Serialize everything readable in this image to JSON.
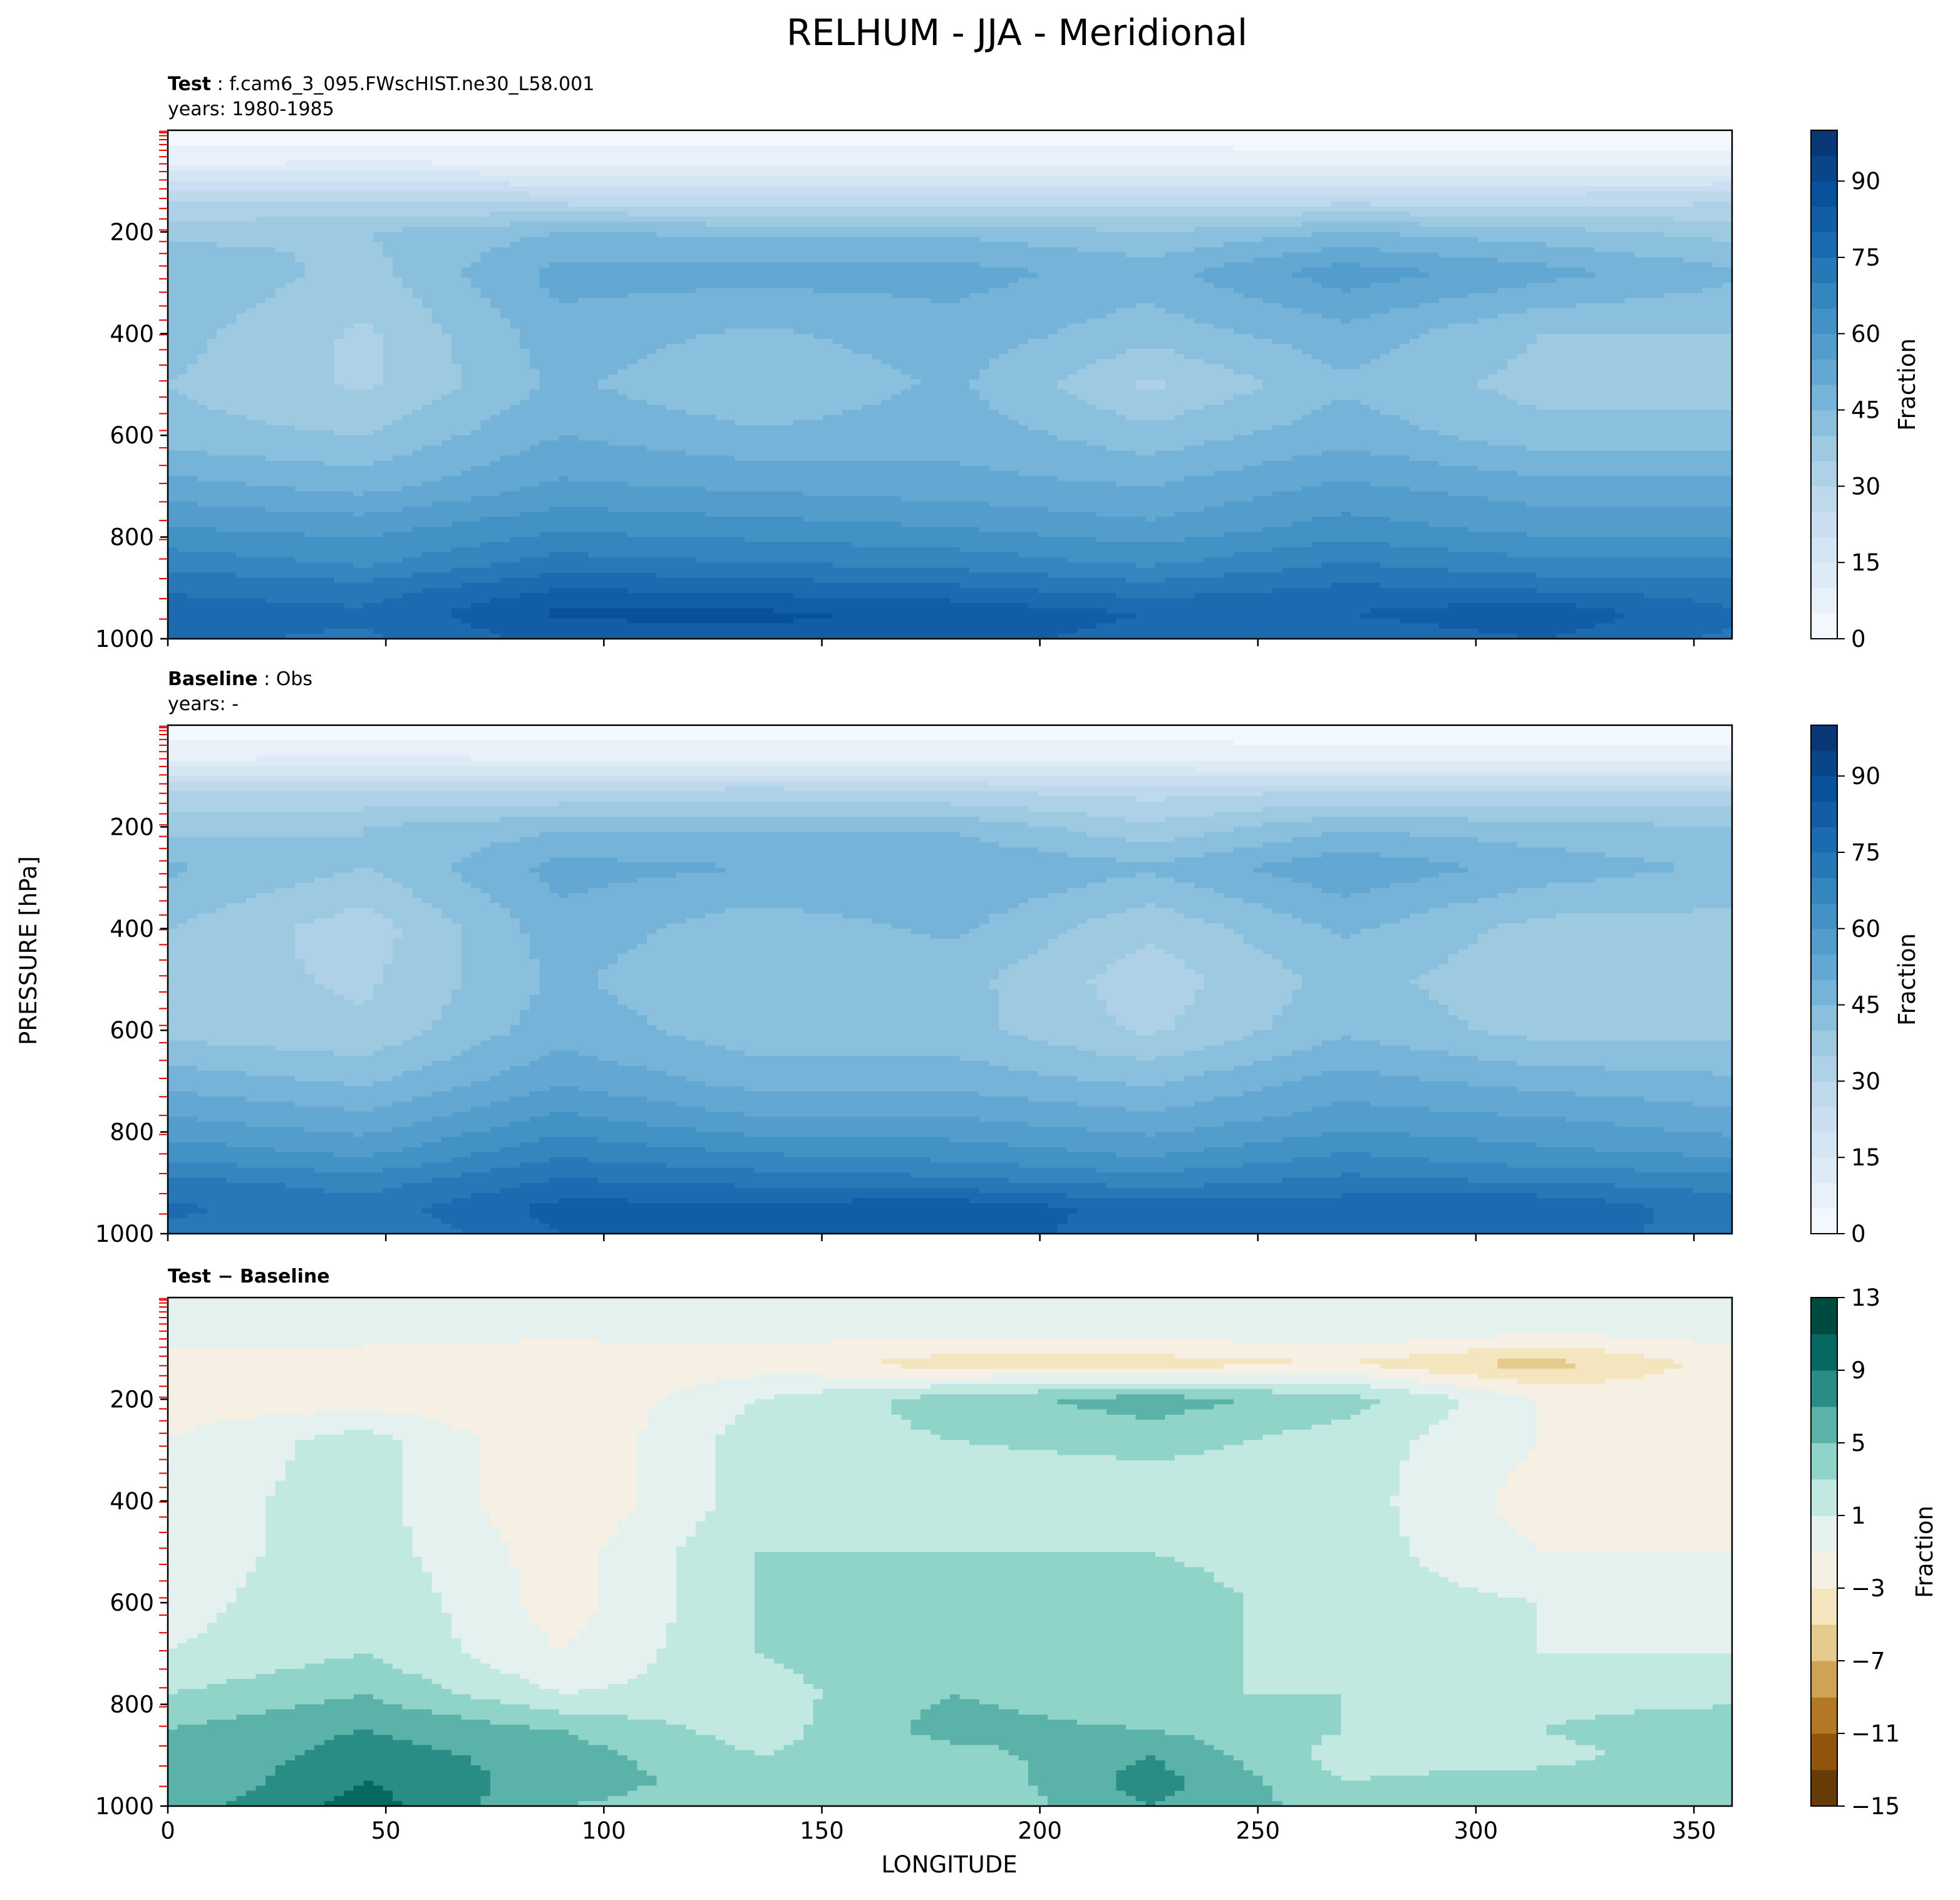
{
  "figure": {
    "title": "RELHUM - JJA - Meridional",
    "ylabel": "PRESSURE [hPa]",
    "xlabel": "LONGITUDE"
  },
  "chart_data": [
    {
      "type": "heatmap",
      "panel": "test",
      "title_bold": "Test",
      "title_rest": " : f.cam6_3_095.FWscHIST.ne30_L58.001",
      "subtitle": "years: 1980-1985",
      "x_ticks": [
        0,
        50,
        100,
        150,
        200,
        250,
        300,
        350
      ],
      "x_tick_labels_shown": false,
      "y_ticks": [
        200,
        400,
        600,
        800,
        1000
      ],
      "xlim": [
        0,
        358.75
      ],
      "ylim": [
        1000,
        0
      ],
      "x_nodes": [
        0,
        45,
        90,
        135,
        180,
        225,
        270,
        315,
        358.75
      ],
      "p_nodes": [
        0,
        60,
        130,
        200,
        280,
        400,
        500,
        600,
        700,
        780,
        850,
        900,
        950,
        1000
      ],
      "z": [
        [
          2,
          2,
          2,
          2,
          2,
          2,
          2,
          2,
          2
        ],
        [
          8,
          9,
          8,
          8,
          8,
          8,
          6,
          6,
          6
        ],
        [
          28,
          28,
          26,
          24,
          24,
          26,
          26,
          26,
          28
        ],
        [
          38,
          40,
          45,
          44,
          44,
          40,
          45,
          42,
          38
        ],
        [
          45,
          38,
          52,
          52,
          52,
          48,
          58,
          52,
          46
        ],
        [
          42,
          34,
          48,
          44,
          48,
          42,
          48,
          40,
          40
        ],
        [
          40,
          34,
          46,
          40,
          46,
          34,
          44,
          38,
          38
        ],
        [
          42,
          40,
          50,
          46,
          48,
          42,
          48,
          42,
          42
        ],
        [
          52,
          48,
          56,
          54,
          52,
          50,
          56,
          52,
          52
        ],
        [
          60,
          58,
          64,
          62,
          60,
          56,
          62,
          58,
          58
        ],
        [
          68,
          64,
          72,
          70,
          68,
          64,
          70,
          66,
          66
        ],
        [
          74,
          72,
          80,
          78,
          76,
          72,
          76,
          74,
          72
        ],
        [
          78,
          76,
          86,
          86,
          84,
          80,
          80,
          84,
          76
        ],
        [
          76,
          74,
          82,
          84,
          82,
          78,
          76,
          80,
          74
        ]
      ],
      "colorbar": {
        "label": "Fraction",
        "ticks": [
          0,
          15,
          30,
          45,
          60,
          75,
          90
        ],
        "range": [
          0,
          100
        ],
        "levels": 20,
        "colormap": "Blues",
        "colors": [
          "#f7fbff",
          "#deebf7",
          "#c6dbef",
          "#9ecae1",
          "#6baed6",
          "#4292c6",
          "#2171b5",
          "#08519c",
          "#08306b"
        ]
      }
    },
    {
      "type": "heatmap",
      "panel": "baseline",
      "title_bold": "Baseline",
      "title_rest": " : Obs",
      "subtitle": "years: -",
      "x_ticks": [
        0,
        50,
        100,
        150,
        200,
        250,
        300,
        350
      ],
      "x_tick_labels_shown": false,
      "y_ticks": [
        200,
        400,
        600,
        800,
        1000
      ],
      "xlim": [
        0,
        358.75
      ],
      "ylim": [
        1000,
        0
      ],
      "x_nodes": [
        0,
        45,
        90,
        135,
        180,
        225,
        270,
        315,
        358.75
      ],
      "p_nodes": [
        0,
        60,
        130,
        200,
        280,
        400,
        500,
        600,
        700,
        780,
        850,
        900,
        950,
        1000
      ],
      "z": [
        [
          2,
          2,
          2,
          2,
          2,
          2,
          2,
          2,
          2
        ],
        [
          8,
          9,
          8,
          8,
          8,
          8,
          6,
          6,
          6
        ],
        [
          30,
          30,
          30,
          32,
          30,
          28,
          30,
          30,
          30
        ],
        [
          38,
          40,
          44,
          44,
          44,
          36,
          44,
          42,
          40
        ],
        [
          46,
          40,
          52,
          50,
          50,
          46,
          54,
          48,
          44
        ],
        [
          40,
          32,
          48,
          42,
          46,
          36,
          46,
          38,
          38
        ],
        [
          38,
          34,
          46,
          40,
          42,
          32,
          42,
          36,
          36
        ],
        [
          38,
          36,
          48,
          42,
          42,
          34,
          44,
          38,
          38
        ],
        [
          48,
          44,
          54,
          48,
          48,
          44,
          52,
          48,
          46
        ],
        [
          56,
          52,
          62,
          56,
          56,
          52,
          58,
          56,
          52
        ],
        [
          64,
          60,
          70,
          66,
          64,
          60,
          66,
          62,
          60
        ],
        [
          72,
          68,
          76,
          74,
          72,
          68,
          72,
          70,
          68
        ],
        [
          76,
          72,
          82,
          82,
          84,
          78,
          78,
          80,
          72
        ],
        [
          74,
          70,
          80,
          82,
          84,
          76,
          76,
          78,
          72
        ]
      ],
      "colorbar": {
        "label": "Fraction",
        "ticks": [
          0,
          15,
          30,
          45,
          60,
          75,
          90
        ],
        "range": [
          0,
          100
        ],
        "levels": 20,
        "colormap": "Blues",
        "colors": [
          "#f7fbff",
          "#deebf7",
          "#c6dbef",
          "#9ecae1",
          "#6baed6",
          "#4292c6",
          "#2171b5",
          "#08519c",
          "#08306b"
        ]
      }
    },
    {
      "type": "heatmap",
      "panel": "difference",
      "title_bold": "Test − Baseline",
      "title_rest": "",
      "subtitle": "",
      "x_ticks": [
        0,
        50,
        100,
        150,
        200,
        250,
        300,
        350
      ],
      "x_tick_labels_shown": true,
      "y_ticks": [
        200,
        400,
        600,
        800,
        1000
      ],
      "xlim": [
        0,
        358.75
      ],
      "ylim": [
        1000,
        0
      ],
      "x_nodes": [
        0,
        45,
        90,
        135,
        180,
        225,
        270,
        315,
        358.75
      ],
      "p_nodes": [
        0,
        60,
        130,
        200,
        280,
        400,
        500,
        600,
        700,
        780,
        850,
        900,
        950,
        1000
      ],
      "z": [
        [
          0,
          0,
          0,
          0,
          0,
          0,
          0,
          1,
          1
        ],
        [
          0,
          0,
          0,
          0,
          0,
          0,
          1,
          0,
          0
        ],
        [
          -2,
          -2,
          -3,
          -2,
          -4,
          -4,
          -3,
          -6,
          -2
        ],
        [
          -2,
          -2,
          -3,
          1,
          4,
          6,
          4,
          -1,
          -2
        ],
        [
          -1,
          2,
          -3,
          2,
          3,
          4,
          2,
          -1,
          -1
        ],
        [
          0,
          2,
          -3,
          2,
          1,
          1,
          2,
          -2,
          -2
        ],
        [
          0,
          2,
          -2,
          3,
          3,
          3,
          2,
          -1,
          -1
        ],
        [
          0,
          3,
          -2,
          3,
          5,
          4,
          2,
          1,
          0
        ],
        [
          1,
          3,
          -1,
          3,
          5,
          4,
          2,
          1,
          1
        ],
        [
          3,
          5,
          1,
          2,
          5,
          3,
          3,
          2,
          2
        ],
        [
          5,
          7,
          5,
          2,
          6,
          5,
          3,
          3,
          5
        ],
        [
          5,
          8,
          6,
          3,
          4,
          7,
          2,
          2,
          5
        ],
        [
          5,
          9,
          6,
          4,
          3,
          8,
          3,
          4,
          4
        ],
        [
          6,
          10,
          5,
          4,
          3,
          7,
          4,
          3,
          5
        ]
      ],
      "colorbar": {
        "label": "Fraction",
        "ticks": [
          -15,
          -11,
          -7,
          -3,
          1,
          5,
          9,
          13
        ],
        "range": [
          -15,
          13
        ],
        "levels": 14,
        "colormap": "BrBG",
        "colors": [
          "#543005",
          "#8c510a",
          "#bf812d",
          "#dfc27d",
          "#f6e8c3",
          "#f5f5f5",
          "#c7eae5",
          "#80cdc1",
          "#35978f",
          "#01665e",
          "#003c30"
        ]
      }
    }
  ]
}
